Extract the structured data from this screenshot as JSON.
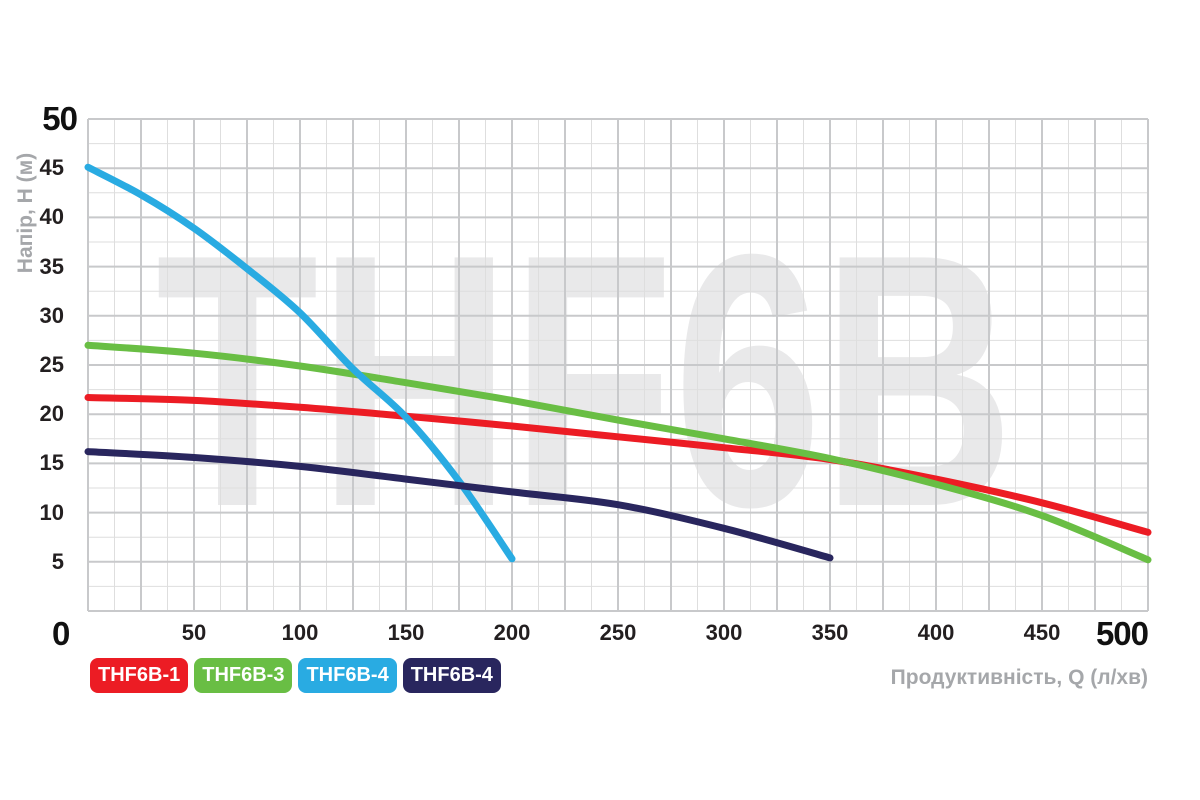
{
  "chart_data": {
    "type": "line",
    "watermark": "THF6B",
    "xlabel": "Продуктивність, Q (л/хв)",
    "ylabel": "Напір, H (м)",
    "xlim": [
      0,
      500
    ],
    "ylim": [
      0,
      50
    ],
    "x_ticks": [
      0,
      50,
      100,
      150,
      200,
      250,
      300,
      350,
      400,
      450,
      500
    ],
    "y_ticks": [
      0,
      5,
      10,
      15,
      20,
      25,
      30,
      35,
      40,
      45,
      50
    ],
    "grid": {
      "minor_step_x": 12.5,
      "minor_step_y": 2.5,
      "major_step_x": 25,
      "major_step_y": 5,
      "minor_color": "#dedede",
      "major_color": "#c8c9cb",
      "watermark_color": "#e9e9ea"
    },
    "legend_position": "bottom-left",
    "series": [
      {
        "name": "THF6B-1",
        "color": "#EC1C24",
        "points": [
          [
            0,
            21.7
          ],
          [
            50,
            21.4
          ],
          [
            100,
            20.7
          ],
          [
            150,
            19.8
          ],
          [
            200,
            18.8
          ],
          [
            250,
            17.7
          ],
          [
            300,
            16.6
          ],
          [
            350,
            15.4
          ],
          [
            400,
            13.4
          ],
          [
            450,
            11.0
          ],
          [
            500,
            8.0
          ]
        ]
      },
      {
        "name": "THF6B-3",
        "color": "#69BE44",
        "points": [
          [
            0,
            27.0
          ],
          [
            50,
            26.2
          ],
          [
            100,
            24.9
          ],
          [
            150,
            23.2
          ],
          [
            200,
            21.4
          ],
          [
            250,
            19.4
          ],
          [
            300,
            17.5
          ],
          [
            350,
            15.5
          ],
          [
            400,
            12.9
          ],
          [
            450,
            9.7
          ],
          [
            500,
            5.2
          ]
        ]
      },
      {
        "name": "THF6B-4",
        "color": "#29ABE2",
        "points": [
          [
            0,
            45.1
          ],
          [
            25,
            42.3
          ],
          [
            50,
            38.9
          ],
          [
            75,
            34.8
          ],
          [
            100,
            30.3
          ],
          [
            125,
            24.6
          ],
          [
            150,
            19.7
          ],
          [
            175,
            13.2
          ],
          [
            200,
            5.3
          ]
        ]
      },
      {
        "name": "THF6B-4",
        "color": "#29265E",
        "points": [
          [
            0,
            16.2
          ],
          [
            50,
            15.6
          ],
          [
            100,
            14.7
          ],
          [
            150,
            13.4
          ],
          [
            200,
            12.1
          ],
          [
            250,
            10.8
          ],
          [
            300,
            8.4
          ],
          [
            350,
            5.4
          ]
        ]
      }
    ]
  }
}
